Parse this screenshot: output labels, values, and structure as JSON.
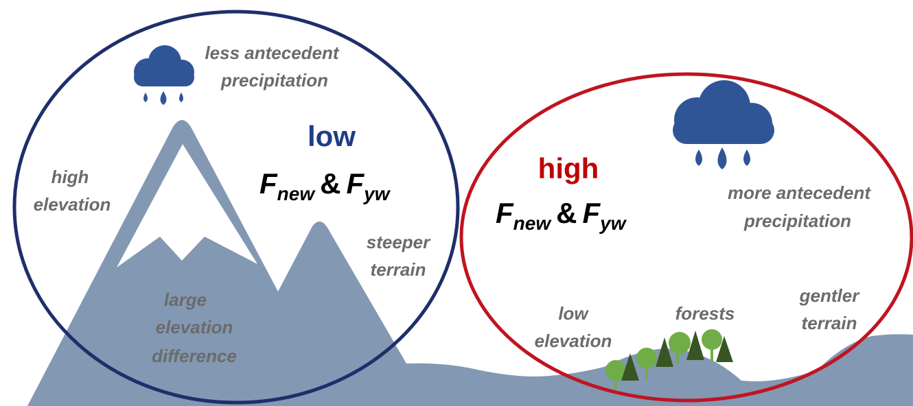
{
  "left": {
    "precipitation": [
      "less antecedent",
      "precipitation"
    ],
    "elevation": [
      "high",
      "elevation"
    ],
    "terrain": [
      "steeper",
      "terrain"
    ],
    "difference": [
      "large",
      "elevation",
      "difference"
    ],
    "level": "low",
    "formula": {
      "f1": "F",
      "sub1": "new",
      "amp": "&",
      "f2": "F",
      "sub2": "yw"
    }
  },
  "right": {
    "precipitation": [
      "more antecedent",
      "precipitation"
    ],
    "elevation": [
      "low",
      "elevation"
    ],
    "vegetation": "forests",
    "terrain": [
      "gentler",
      "terrain"
    ],
    "level": "high",
    "formula": {
      "f1": "F",
      "sub1": "new",
      "amp": "&",
      "f2": "F",
      "sub2": "yw"
    }
  }
}
